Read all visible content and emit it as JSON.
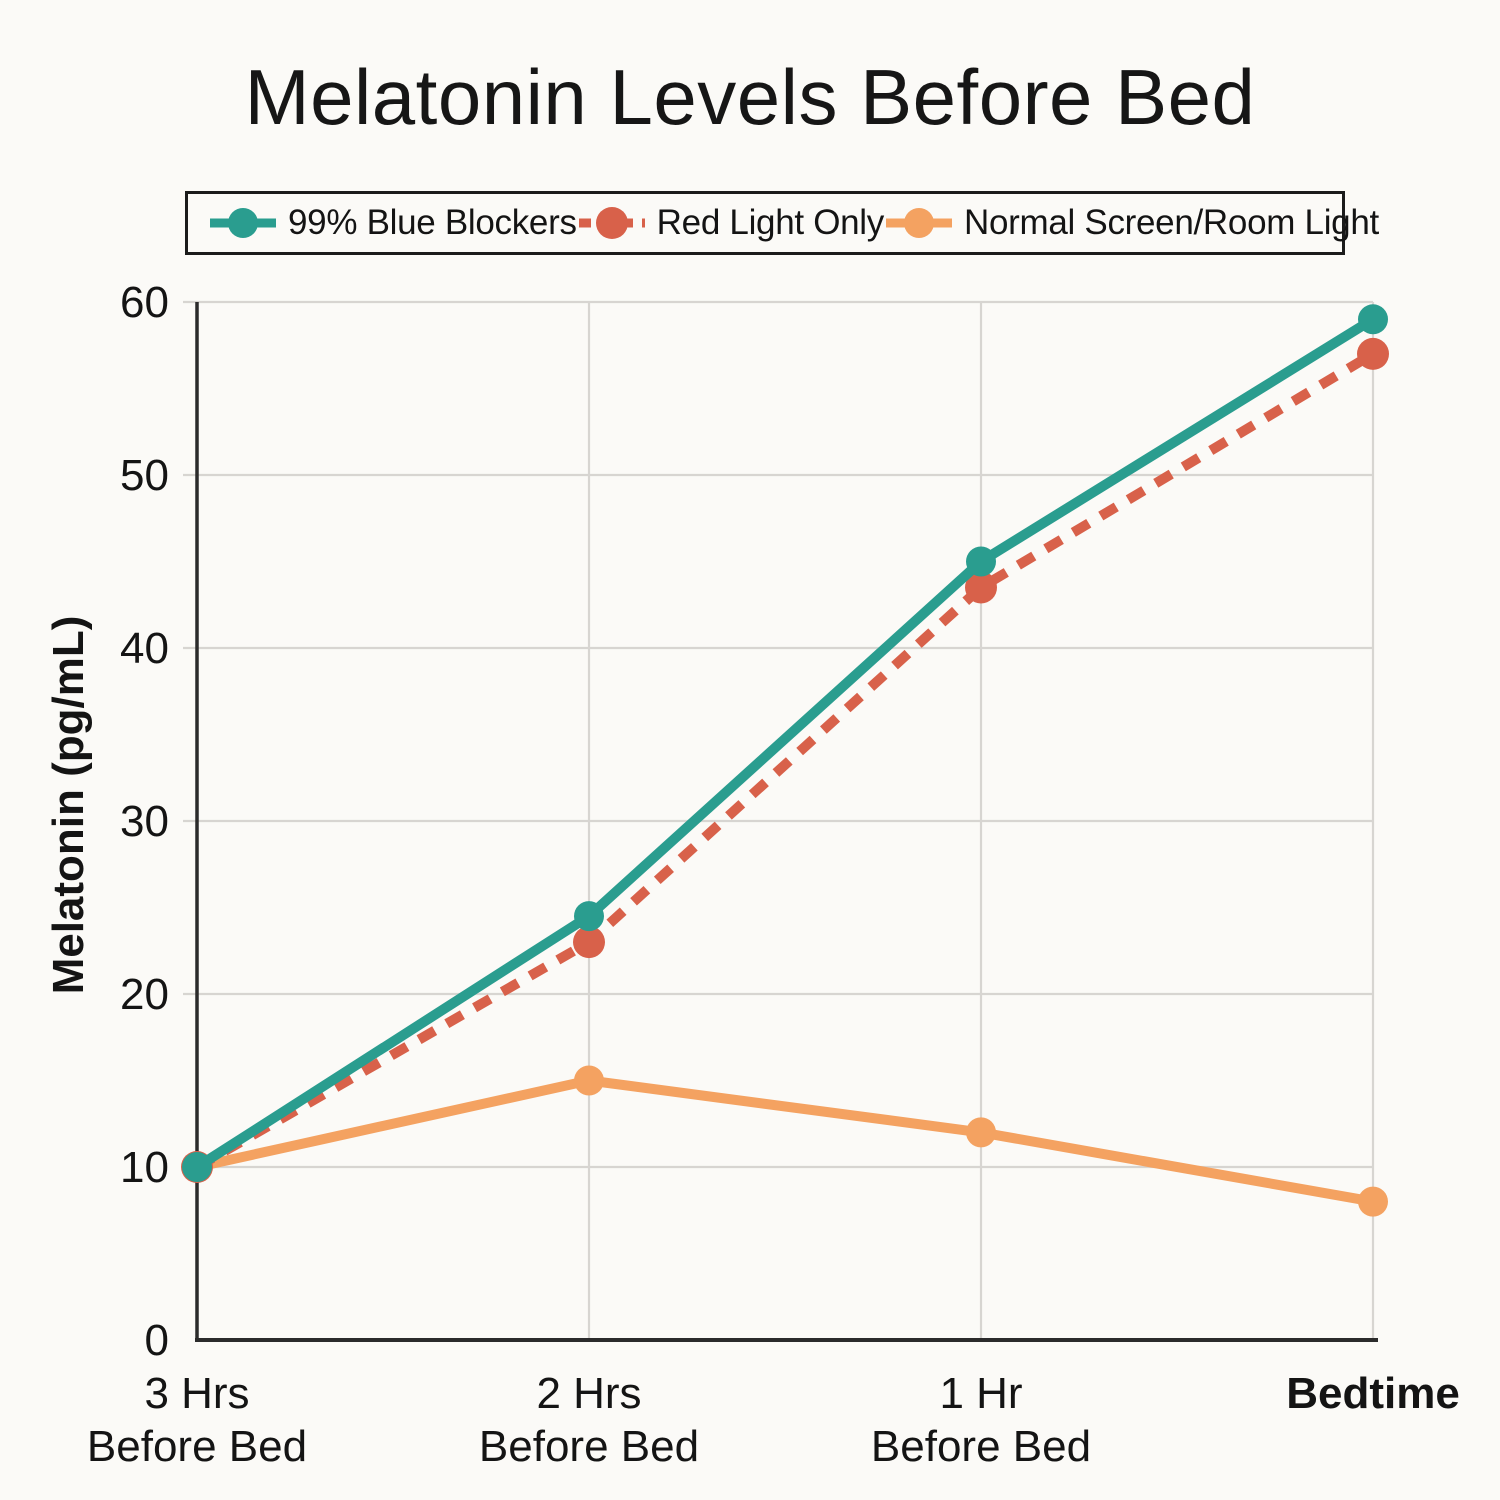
{
  "title": "Melatonin Levels Before Bed",
  "colors": {
    "background": "#fbfaf7",
    "text": "#141414",
    "grid": "#d7d5d1",
    "axis": "#2b2b2b",
    "teal": "#2a9d8f",
    "red": "#d8614a",
    "orange": "#f4a261"
  },
  "legend": {
    "position": "top",
    "items": [
      {
        "label": "99% Blue Blockers",
        "color": "#2a9d8f",
        "dashed": false
      },
      {
        "label": "Red Light Only",
        "color": "#d8614a",
        "dashed": true
      },
      {
        "label": "Normal Screen/Room Light",
        "color": "#f4a261",
        "dashed": false
      }
    ]
  },
  "chart_data": {
    "type": "line",
    "title": "Melatonin Levels Before Bed",
    "xlabel": "",
    "ylabel": "Melatonin (pg/mL)",
    "ylim": [
      0,
      60
    ],
    "ytick_step": 10,
    "ytick_labels": [
      "0",
      "10",
      "20",
      "30",
      "40",
      "50",
      "60"
    ],
    "grid": true,
    "legend_position": "top",
    "categories": [
      {
        "lines": [
          "3 Hrs",
          "Before Bed"
        ],
        "bold": false
      },
      {
        "lines": [
          "2 Hrs",
          "Before Bed"
        ],
        "bold": false
      },
      {
        "lines": [
          "1 Hr",
          "Before Bed"
        ],
        "bold": false
      },
      {
        "lines": [
          "Bedtime"
        ],
        "bold": true
      }
    ],
    "series": [
      {
        "name": "99% Blue Blockers",
        "values": [
          10,
          24.5,
          45,
          59
        ],
        "color": "#2a9d8f",
        "style": "solid",
        "marker_radius": 15
      },
      {
        "name": "Red Light Only",
        "values": [
          10,
          23,
          43.5,
          57
        ],
        "color": "#d8614a",
        "style": "dashed",
        "marker_radius": 16
      },
      {
        "name": "Normal Screen/Room Light",
        "values": [
          10,
          15,
          12,
          8
        ],
        "color": "#f4a261",
        "style": "solid",
        "marker_radius": 15
      }
    ]
  }
}
